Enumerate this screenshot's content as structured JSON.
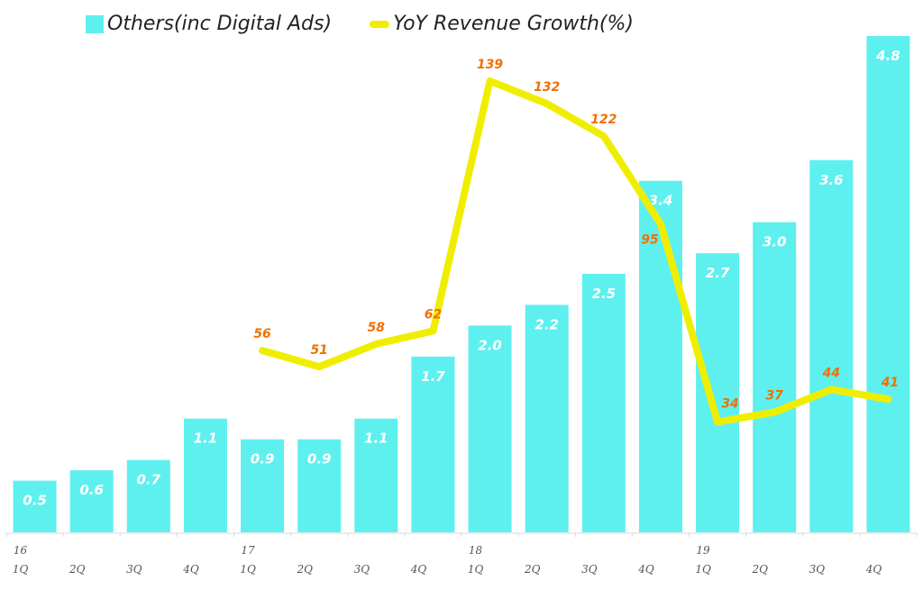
{
  "chart_data": {
    "type": "bar",
    "title": "",
    "xlabel": "",
    "ylabel": "",
    "legend_position": "top-left",
    "categories": [
      "16 1Q",
      "16 2Q",
      "16 3Q",
      "16 4Q",
      "17 1Q",
      "17 2Q",
      "17 3Q",
      "17 4Q",
      "18 1Q",
      "18 2Q",
      "18 3Q",
      "18 4Q",
      "19 1Q",
      "19 2Q",
      "19 3Q",
      "19 4Q"
    ],
    "year_labels": [
      "16",
      "",
      "",
      "",
      "17",
      "",
      "",
      "",
      "18",
      "",
      "",
      "",
      "19",
      "",
      "",
      ""
    ],
    "quarter_labels": [
      "1Q",
      "2Q",
      "3Q",
      "4Q",
      "1Q",
      "2Q",
      "3Q",
      "4Q",
      "1Q",
      "2Q",
      "3Q",
      "4Q",
      "1Q",
      "2Q",
      "3Q",
      "4Q"
    ],
    "series": [
      {
        "name": "Others(inc Digital Ads)",
        "type": "bar",
        "color": "#5ef0ef",
        "values": [
          0.5,
          0.6,
          0.7,
          1.1,
          0.9,
          0.9,
          1.1,
          1.7,
          2.0,
          2.2,
          2.5,
          3.4,
          2.7,
          3.0,
          3.6,
          4.8
        ],
        "labels": [
          "0.5",
          "0.6",
          "0.7",
          "1.1",
          "0.9",
          "0.9",
          "1.1",
          "1.7",
          "2.0",
          "2.2",
          "2.5",
          "3.4",
          "2.7",
          "3.0",
          "3.6",
          "4.8"
        ]
      },
      {
        "name": "YoY Revenue Growth(%)",
        "type": "line",
        "color": "#f0ee00",
        "label_color": "#f07000",
        "values": [
          null,
          null,
          null,
          null,
          56,
          51,
          58,
          62,
          139,
          132,
          122,
          95,
          34,
          37,
          44,
          41
        ]
      }
    ],
    "bar_ylim": [
      0,
      4.8
    ],
    "line_ylim": [
      0,
      165
    ],
    "grid": false
  },
  "legend": {
    "bar_label": "Others(inc Digital Ads)",
    "line_label": "YoY Revenue Growth(%)"
  }
}
